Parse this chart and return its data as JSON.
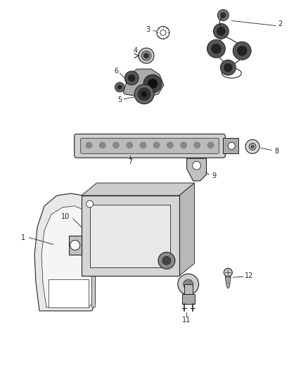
{
  "background_color": "#ffffff",
  "line_color": "#222222",
  "gray_light": "#d8d8d8",
  "gray_med": "#aaaaaa",
  "gray_dark": "#555555",
  "gray_darker": "#333333"
}
